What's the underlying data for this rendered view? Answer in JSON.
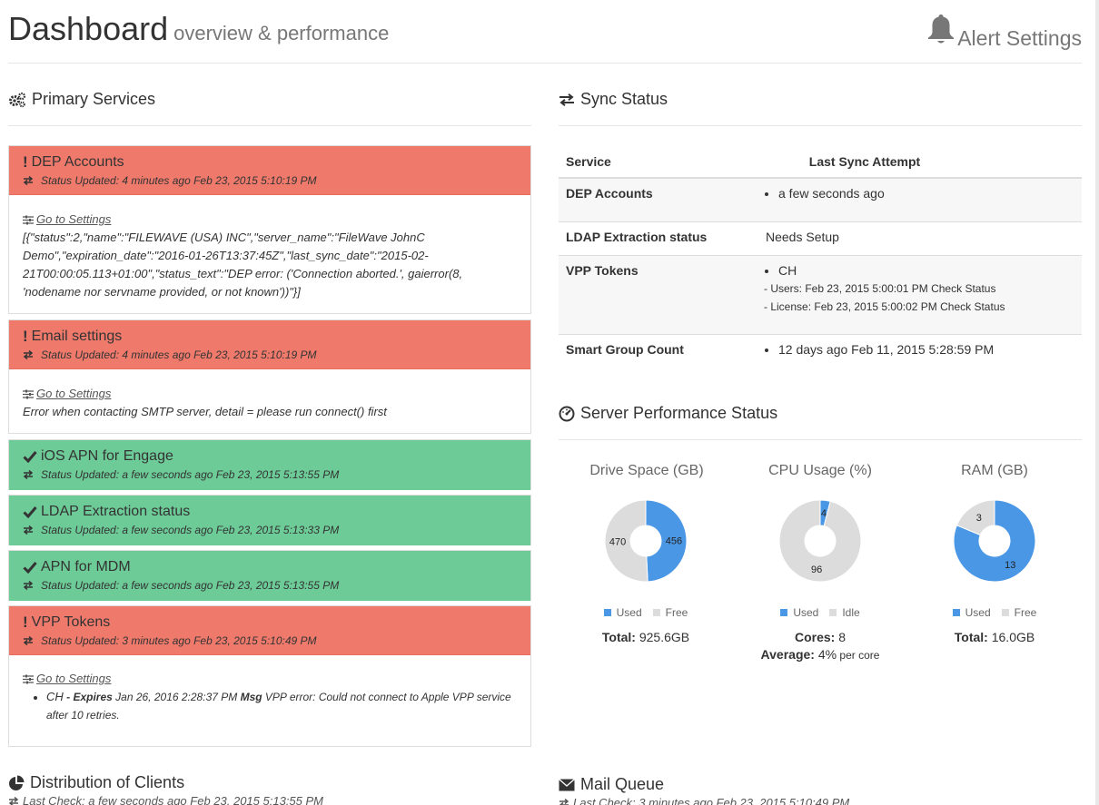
{
  "header": {
    "title": "Dashboard",
    "subtitle": "overview & performance",
    "alert_settings": "Alert Settings"
  },
  "primary_services": {
    "heading": "Primary Services",
    "panels": [
      {
        "name": "DEP Accounts",
        "status": "error",
        "updated": "Status Updated: 4 minutes ago Feb 23, 2015 5:10:19 PM",
        "link": "Go to Settings",
        "detail": "[{\"status\":2,\"name\":\"FILEWAVE (USA) INC\",\"server_name\":\"FileWave JohnC Demo\",\"expiration_date\":\"2016-01-26T13:37:45Z\",\"last_sync_date\":\"2015-02-21T00:00:05.113+01:00\",\"status_text\":\"DEP error: ('Connection aborted.', gaierror(8, 'nodename nor servname provided, or not known'))\"}]"
      },
      {
        "name": "Email settings",
        "status": "error",
        "updated": "Status Updated: 4 minutes ago Feb 23, 2015 5:10:19 PM",
        "link": "Go to Settings",
        "detail": "Error when contacting SMTP server, detail = please run connect() first"
      },
      {
        "name": "iOS APN for Engage",
        "status": "ok",
        "updated": "Status Updated: a few seconds ago Feb 23, 2015 5:13:55 PM"
      },
      {
        "name": "LDAP Extraction status",
        "status": "ok",
        "updated": "Status Updated: a few seconds ago Feb 23, 2015 5:13:33 PM"
      },
      {
        "name": "APN for MDM",
        "status": "ok",
        "updated": "Status Updated: a few seconds ago Feb 23, 2015 5:13:55 PM"
      },
      {
        "name": "VPP Tokens",
        "status": "error",
        "updated": "Status Updated: 3 minutes ago Feb 23, 2015 5:10:49 PM",
        "link": "Go to Settings",
        "vpp_item": {
          "name": "CH",
          "sep": " - ",
          "expires_label": "Expires",
          "expires_value": " Jan 26, 2016 2:28:37 PM ",
          "msg_label": "Msg",
          "msg_value": " VPP error: Could not connect to Apple VPP service after 10 retries."
        }
      }
    ]
  },
  "sync_status": {
    "heading": "Sync Status",
    "col_service": "Service",
    "col_last": "Last Sync Attempt",
    "rows": {
      "dep": {
        "service": "DEP Accounts",
        "value": "a few seconds ago"
      },
      "ldap": {
        "service": "LDAP Extraction status",
        "value": "Needs Setup"
      },
      "vpp": {
        "service": "VPP Tokens",
        "value": "CH",
        "users": "- Users: Feb 23, 2015 5:00:01 PM Check Status",
        "license": "- License: Feb 23, 2015 5:00:02 PM Check Status"
      },
      "smart": {
        "service": "Smart Group Count",
        "value": "12 days ago Feb 11, 2015 5:28:59 PM"
      }
    }
  },
  "server_performance": {
    "heading": "Server Performance Status",
    "colors": {
      "used": "#4a97e6",
      "free": "#dcdcdc"
    },
    "drive": {
      "title": "Drive Space (GB)",
      "used": 456,
      "free": 470,
      "used_label": "456",
      "free_label": "470",
      "legend_used": "Used",
      "legend_free": "Free",
      "total_label": "Total:",
      "total_value": " 925.6GB"
    },
    "cpu": {
      "title": "CPU Usage (%)",
      "used": 4,
      "idle": 96,
      "used_label": "4",
      "idle_label": "96",
      "legend_used": "Used",
      "legend_idle": "Idle",
      "cores_label": "Cores:",
      "cores_value": " 8",
      "avg_label": "Average:",
      "avg_value": " 4%",
      "avg_suffix": " per core"
    },
    "ram": {
      "title": "RAM (GB)",
      "used": 13,
      "free": 3,
      "used_label": "13",
      "free_label": "3",
      "legend_used": "Used",
      "legend_free": "Free",
      "total_label": "Total:",
      "total_value": " 16.0GB"
    }
  },
  "distribution": {
    "heading": "Distribution of Clients",
    "last_check": "Last Check: a few seconds ago Feb 23, 2015 5:13:55 PM"
  },
  "mail_queue": {
    "heading": "Mail Queue",
    "last_check": "Last Check: 3 minutes ago Feb 23, 2015 5:10:49 PM"
  }
}
